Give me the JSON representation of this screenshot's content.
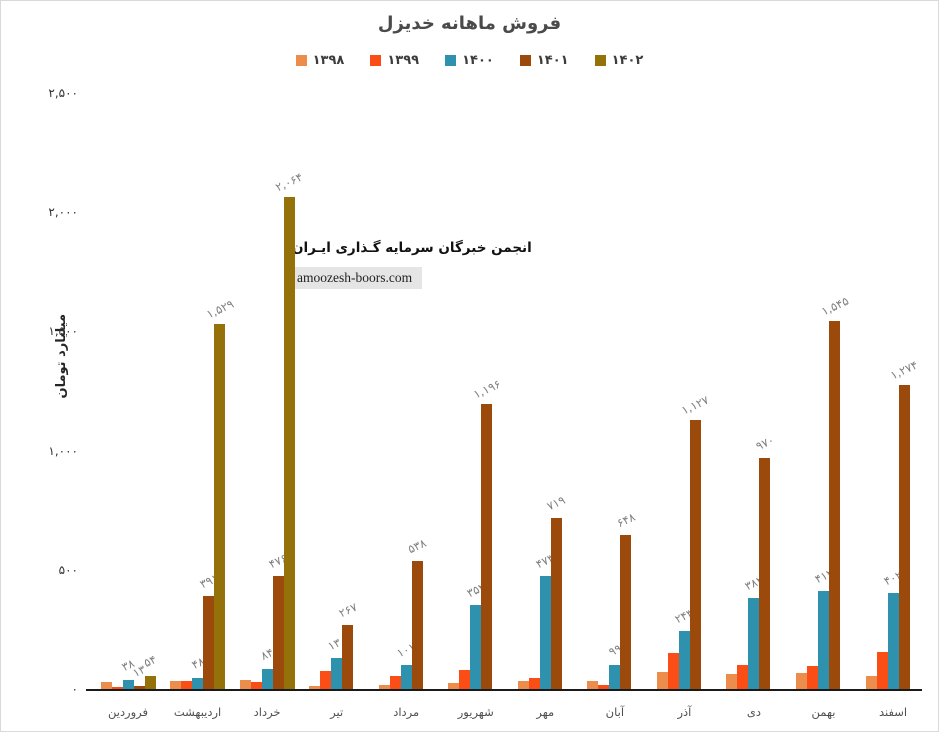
{
  "title": "فروش ماهانه خدیزل",
  "watermark": {
    "line1": "انجمن خبرگان سرمایه گـذاری ایـران",
    "line2": "amoozesh-boors.com"
  },
  "y_axis": {
    "title": "میلیارد تومان",
    "ticks": [
      {
        "value": 0,
        "label": "۰"
      },
      {
        "value": 500,
        "label": "۵۰۰"
      },
      {
        "value": 1000,
        "label": "۱,۰۰۰"
      },
      {
        "value": 1500,
        "label": "۱,۵۰۰"
      },
      {
        "value": 2000,
        "label": "۲,۰۰۰"
      },
      {
        "value": 2500,
        "label": "۲,۵۰۰"
      }
    ]
  },
  "chart_data": {
    "type": "bar",
    "title": "فروش ماهانه خدیزل",
    "ylabel": "میلیارد تومان",
    "ylim": [
      0,
      2500
    ],
    "grid": false,
    "legend_position": "top",
    "categories": [
      "فروردین",
      "اردیبهشت",
      "خرداد",
      "تیر",
      "مرداد",
      "شهریور",
      "مهر",
      "آبان",
      "آذر",
      "دی",
      "بهمن",
      "اسفند"
    ],
    "series": [
      {
        "name": "۱۳۹۸",
        "year": 1398,
        "color": "#EC8C4D",
        "values": [
          28,
          35,
          37,
          14,
          18,
          25,
          35,
          33,
          70,
          65,
          68,
          55
        ],
        "labels": [
          "",
          "",
          "",
          "",
          "",
          "",
          "",
          "",
          "",
          "",
          "",
          ""
        ]
      },
      {
        "name": "۱۳۹۹",
        "year": 1399,
        "color": "#FA4E16",
        "values": [
          7,
          35,
          28,
          76,
          55,
          78,
          45,
          18,
          150,
          100,
          95,
          155
        ],
        "labels": [
          "",
          "",
          "",
          "",
          "",
          "",
          "",
          "",
          "",
          "",
          "",
          ""
        ]
      },
      {
        "name": "۱۴۰۰",
        "year": 1400,
        "color": "#2E92AF",
        "values": [
          38,
          48,
          84,
          130,
          101,
          352,
          473,
          99,
          243,
          382,
          412,
          402
        ],
        "labels": [
          "۳۸",
          "۴۸",
          "۸۴",
          "۱۳۰",
          "۱۰۱",
          "۳۵۲",
          "۴۷۳",
          "۹۹",
          "۲۴۳",
          "۳۸۲",
          "۴۱۲",
          "۴۰۲"
        ]
      },
      {
        "name": "۱۴۰۱",
        "year": 1401,
        "color": "#9C4A0B",
        "values": [
          13,
          391,
          476,
          267,
          538,
          1196,
          719,
          648,
          1127,
          970,
          1545,
          1274
        ],
        "labels": [
          "۱۳",
          "۳۹۱",
          "۴۷۶",
          "۲۶۷",
          "۵۳۸",
          "۱,۱۹۶",
          "۷۱۹",
          "۶۴۸",
          "۱,۱۲۷",
          "۹۷۰",
          "۱,۵۴۵",
          "۱,۲۷۴"
        ]
      },
      {
        "name": "۱۴۰۲",
        "year": 1402,
        "color": "#957109",
        "values": [
          54,
          1529,
          2064,
          null,
          null,
          null,
          null,
          null,
          null,
          null,
          null,
          null
        ],
        "labels": [
          "۵۴",
          "۱,۵۲۹",
          "۲,۰۶۴",
          "",
          "",
          "",
          "",
          "",
          "",
          "",
          "",
          ""
        ]
      }
    ]
  },
  "layout_note_colors": {
    "title_text": "#4a4a4a",
    "value_label": "#7f7f7f",
    "axis_line": "#1a1a1a"
  }
}
